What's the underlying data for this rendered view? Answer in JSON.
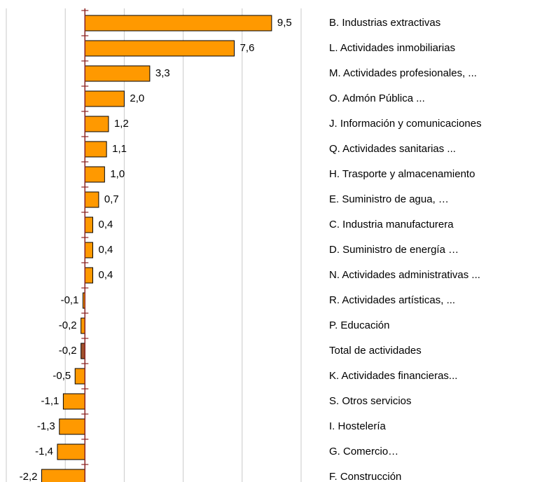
{
  "chart_data": {
    "type": "hbar",
    "categories": [
      "B. Industrias extractivas",
      "L. Actividades inmobiliarias",
      "M. Actividades profesionales, ...",
      "O. Admón Pública ...",
      "J. Información y comunicaciones",
      "Q. Actividades sanitarias ...",
      "H. Trasporte y almacenamiento",
      "E. Suministro de agua, …",
      "C. Industria manufacturera",
      "D. Suministro de energía …",
      "N. Actividades administrativas ...",
      "R. Actividades artísticas, ...",
      "P. Educación",
      "Total de actividades",
      "K. Actividades financieras...",
      "S. Otros servicios",
      "I. Hostelería",
      "G. Comercio…",
      "F. Construcción"
    ],
    "values": [
      9.5,
      7.6,
      3.3,
      2.0,
      1.2,
      1.1,
      1.0,
      0.7,
      0.4,
      0.4,
      0.4,
      -0.1,
      -0.2,
      -0.2,
      -0.5,
      -1.1,
      -1.3,
      -1.4,
      -2.2
    ],
    "value_labels": [
      "9,5",
      "7,6",
      "3,3",
      "2,0",
      "1,2",
      "1,1",
      "1,0",
      "0,7",
      "0,4",
      "0,4",
      "0,4",
      "-0,1",
      "-0,2",
      "-0,2",
      "-0,5",
      "-1,1",
      "-1,3",
      "-1,4",
      "-2,2"
    ],
    "colors": [
      "#ff9900",
      "#ff9900",
      "#ff9900",
      "#ff9900",
      "#ff9900",
      "#ff9900",
      "#ff9900",
      "#ff9900",
      "#ff9900",
      "#ff9900",
      "#ff9900",
      "#ff9900",
      "#ff9900",
      "#a0522d",
      "#ff9900",
      "#ff9900",
      "#ff9900",
      "#ff9900",
      "#ff9900"
    ],
    "xlim": [
      -4,
      11
    ],
    "xticks": [
      -4,
      -1,
      2,
      5,
      8,
      11
    ],
    "grid": true
  }
}
